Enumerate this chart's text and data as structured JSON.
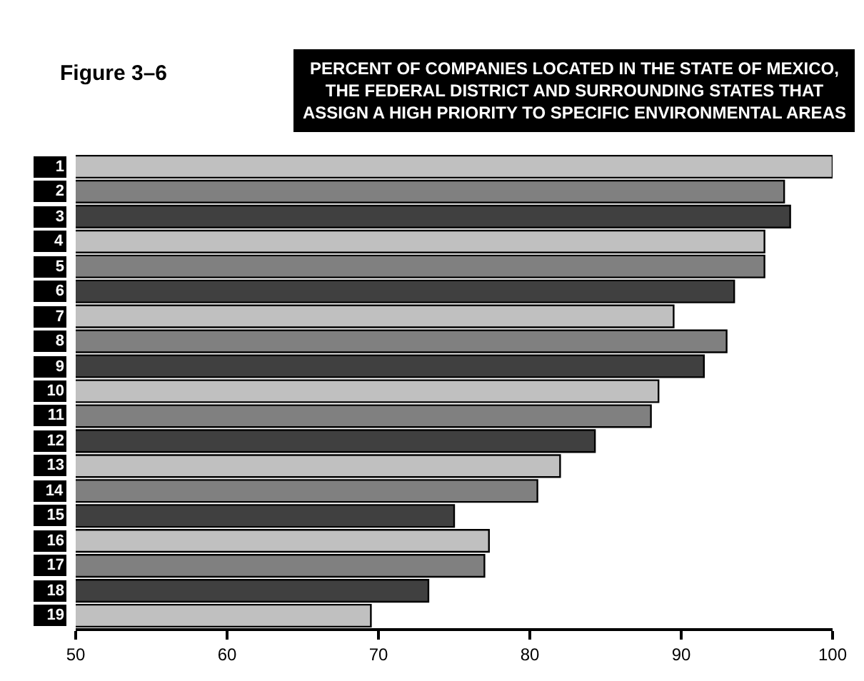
{
  "chart_data": {
    "type": "bar",
    "orientation": "horizontal",
    "title": "PERCENT OF COMPANIES LOCATED IN THE STATE OF MEXICO,\nTHE FEDERAL DISTRICT AND SURROUNDING STATES THAT\nASSIGN A HIGH PRIORITY TO SPECIFIC ENVIRONMENTAL AREAS",
    "annotations": [
      "Figure 3–6"
    ],
    "categories": [
      "1",
      "2",
      "3",
      "4",
      "5",
      "6",
      "7",
      "8",
      "9",
      "10",
      "11",
      "12",
      "13",
      "14",
      "15",
      "16",
      "17",
      "18",
      "19"
    ],
    "values": [
      100,
      96.8,
      97.2,
      95.5,
      95.5,
      93.5,
      89.5,
      93.0,
      91.5,
      88.5,
      88.0,
      84.3,
      82.0,
      80.5,
      75.0,
      77.3,
      77.0,
      73.3,
      69.5
    ],
    "colors": [
      "#c0c0c0",
      "#808080",
      "#404040",
      "#c0c0c0",
      "#808080",
      "#404040",
      "#c0c0c0",
      "#808080",
      "#404040",
      "#c0c0c0",
      "#808080",
      "#404040",
      "#c0c0c0",
      "#808080",
      "#404040",
      "#c0c0c0",
      "#808080",
      "#404040",
      "#c0c0c0"
    ],
    "xlim": [
      50,
      100
    ],
    "xticks": [
      50,
      60,
      70,
      80,
      90,
      100
    ]
  }
}
